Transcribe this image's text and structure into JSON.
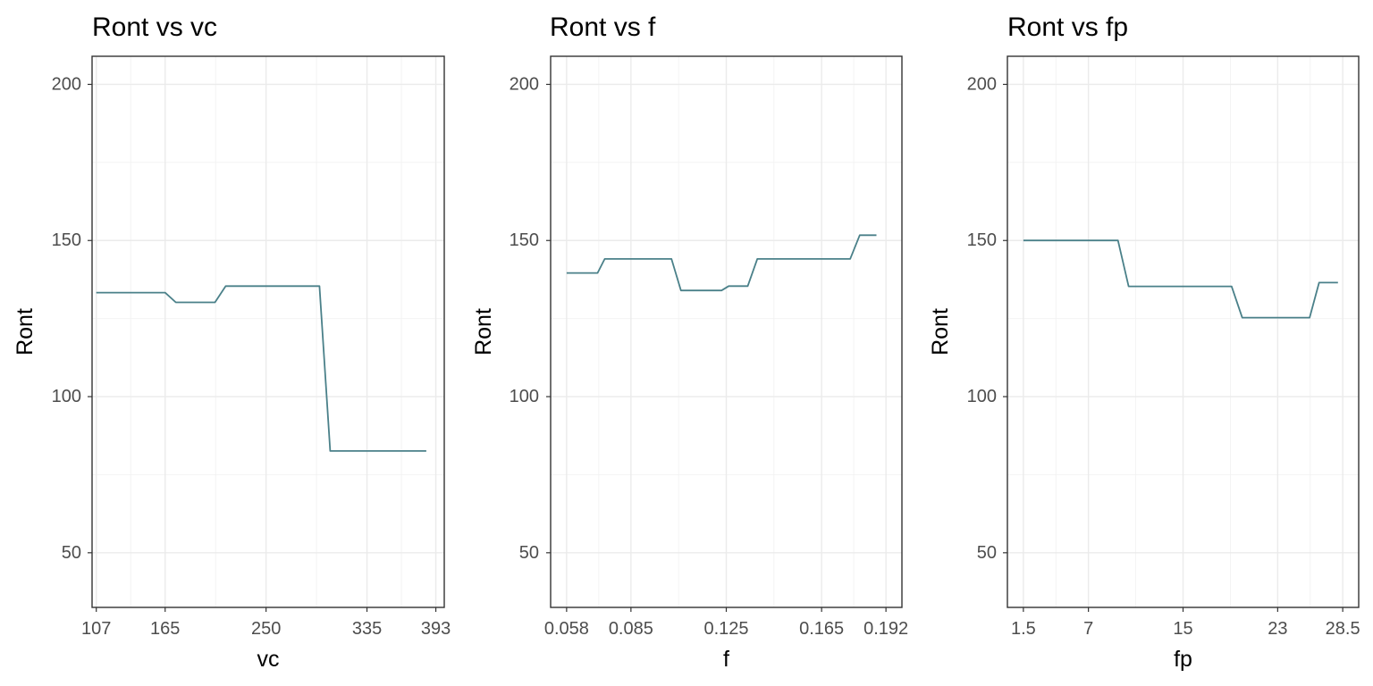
{
  "chart_data": [
    {
      "type": "line",
      "title": "Ront vs vc",
      "xlabel": "vc",
      "ylabel": "Ront",
      "xlim": [
        103.45,
        400.1
      ],
      "ylim": [
        32.5,
        209.0
      ],
      "xticks": [
        107,
        165,
        250,
        335,
        393
      ],
      "xtick_labels": [
        "107",
        "165",
        "250",
        "335",
        "393"
      ],
      "yticks": [
        50,
        100,
        150,
        200
      ],
      "ytick_labels": [
        "50",
        "100",
        "150",
        "200"
      ],
      "grid": true,
      "line_color": "#4a8089",
      "x": [
        107,
        165,
        174,
        207,
        216,
        295,
        304,
        385
      ],
      "y": [
        133.3,
        133.3,
        130.2,
        130.2,
        135.4,
        135.4,
        82.6,
        82.6
      ]
    },
    {
      "type": "line",
      "title": "Ront vs f",
      "xlabel": "f",
      "ylabel": "Ront",
      "xlim": [
        0.0513,
        0.1987
      ],
      "ylim": [
        32.5,
        209.0
      ],
      "xticks": [
        0.058,
        0.085,
        0.125,
        0.165,
        0.192
      ],
      "xtick_labels": [
        "0.058",
        "0.085",
        "0.125",
        "0.165",
        "0.192"
      ],
      "yticks": [
        50,
        100,
        150,
        200
      ],
      "ytick_labels": [
        "50",
        "100",
        "150",
        "200"
      ],
      "grid": true,
      "line_color": "#4a8089",
      "x": [
        0.058,
        0.071,
        0.074,
        0.102,
        0.106,
        0.123,
        0.126,
        0.134,
        0.138,
        0.177,
        0.181,
        0.188
      ],
      "y": [
        139.6,
        139.6,
        144.1,
        144.1,
        134.0,
        134.0,
        135.4,
        135.4,
        144.1,
        144.1,
        151.7,
        151.7
      ]
    },
    {
      "type": "line",
      "title": "Ront vs fp",
      "xlabel": "fp",
      "ylabel": "Ront",
      "xlim": [
        0.15,
        29.85
      ],
      "ylim": [
        32.5,
        209.0
      ],
      "xticks": [
        1.5,
        7,
        15,
        23,
        28.5
      ],
      "xtick_labels": [
        "1.5",
        "7",
        "15",
        "23",
        "28.5"
      ],
      "yticks": [
        50,
        100,
        150,
        200
      ],
      "ytick_labels": [
        "50",
        "100",
        "150",
        "200"
      ],
      "grid": true,
      "line_color": "#4a8089",
      "x": [
        1.5,
        9.5,
        10.4,
        19.1,
        20.0,
        25.7,
        26.5,
        28.1
      ],
      "y": [
        150.0,
        150.0,
        135.3,
        135.3,
        125.3,
        125.3,
        136.5,
        136.5
      ]
    }
  ]
}
